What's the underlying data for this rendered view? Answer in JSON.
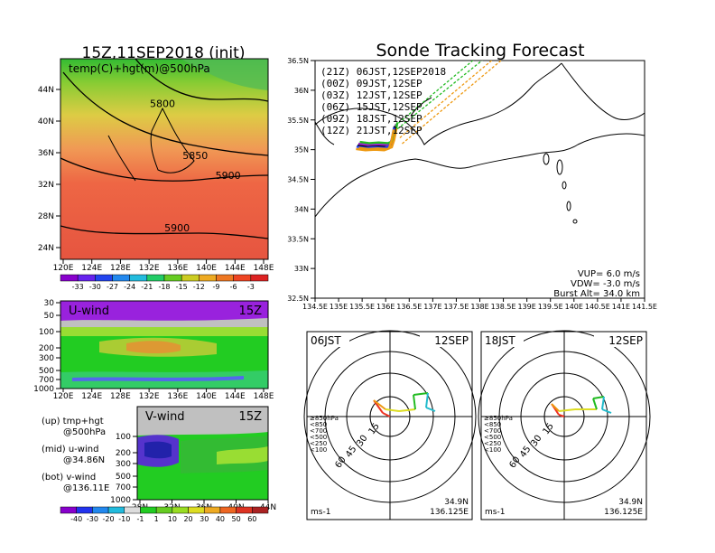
{
  "titles": {
    "left": "15Z,11SEP2018 (init)",
    "right": "Sonde Tracking Forecast"
  },
  "colors": {
    "land": "#ffffff",
    "green": "#22cc22",
    "warm": "#ee5522"
  },
  "chart_data": [
    {
      "type": "heatmap",
      "panel": "temp-500hPa",
      "title": "temp(C)+hgt(m)@500hPa",
      "x_ticks": [
        "120E",
        "124E",
        "128E",
        "132E",
        "136E",
        "140E",
        "144E",
        "148E"
      ],
      "y_ticks": [
        "24N",
        "28N",
        "32N",
        "36N",
        "40N",
        "44N"
      ],
      "contours": [
        {
          "value": "5800",
          "lon": 134,
          "lat": 41
        },
        {
          "value": "5850",
          "lon": 138.5,
          "lat": 34.5
        },
        {
          "value": "5900",
          "lon": 143,
          "lat": 32
        },
        {
          "value": "5900",
          "lon": 136,
          "lat": 25.5
        }
      ],
      "colorbar": [
        "-33",
        "-30",
        "-27",
        "-24",
        "-21",
        "-18",
        "-15",
        "-12",
        "-9",
        "-6",
        "-3"
      ]
    },
    {
      "type": "heatmap",
      "panel": "u-wind",
      "title": "U-wind",
      "time": "15Z",
      "x_ticks": [
        "120E",
        "124E",
        "128E",
        "132E",
        "136E",
        "140E",
        "144E",
        "148E"
      ],
      "y_ticks": [
        "30",
        "50",
        "100",
        "200",
        "300",
        "500",
        "700",
        "1000"
      ]
    },
    {
      "type": "heatmap",
      "panel": "v-wind",
      "title": "V-wind",
      "time": "15Z",
      "x_ticks": [
        "28N",
        "32N",
        "36N",
        "40N",
        "44N"
      ],
      "y_ticks": [
        "100",
        "200",
        "300",
        "500",
        "700",
        "1000"
      ],
      "colorbar": [
        "-40",
        "-30",
        "-20",
        "-10",
        "-1",
        "1",
        "10",
        "20",
        "30",
        "40",
        "50",
        "60"
      ]
    },
    {
      "type": "line",
      "panel": "tracking-map",
      "x_ticks": [
        "134.5E",
        "135E",
        "135.5E",
        "136E",
        "136.5E",
        "137E",
        "137.5E",
        "138E",
        "138.5E",
        "139E",
        "139.5E",
        "140E",
        "140.5E",
        "141E",
        "141.5E"
      ],
      "y_ticks": [
        "32.5N",
        "33N",
        "33.5N",
        "34N",
        "34.5N",
        "35N",
        "35.5N",
        "36N",
        "36.5N"
      ],
      "xlim": [
        134.5,
        141.5
      ],
      "ylim": [
        32.5,
        36.5
      ],
      "series": [
        {
          "name": "(21Z) 06JST,12SEP2018",
          "color": "#000000"
        },
        {
          "name": "(00Z) 09JST,12SEP",
          "color": "#9922cc"
        },
        {
          "name": "(03Z) 12JST,12SEP",
          "color": "#2244ee"
        },
        {
          "name": "(06Z) 15JST,12SEP",
          "color": "#22bb22"
        },
        {
          "name": "(09Z) 18JST,12SEP",
          "color": "#ee9911"
        },
        {
          "name": "(12Z) 21JST,12SEP",
          "color": "#ee9911"
        }
      ],
      "info": [
        "VUP= 6.0 m/s",
        "VDW= -3.0 m/s",
        "Burst Alt= 34.0 km"
      ]
    },
    {
      "type": "line",
      "panel": "hodograph-06JST",
      "time": "06JST",
      "date": "12SEP",
      "rings": [
        "15",
        "30",
        "45",
        "60"
      ],
      "unit": "ms-1",
      "location": [
        "34.9N",
        "136.125E"
      ],
      "legend": [
        "≥850hPa",
        "<850",
        "<700",
        "<500",
        "<250",
        "<100"
      ]
    },
    {
      "type": "line",
      "panel": "hodograph-18JST",
      "time": "18JST",
      "date": "12SEP",
      "rings": [
        "15",
        "30",
        "45",
        "60"
      ],
      "unit": "ms-1",
      "location": [
        "34.9N",
        "136.125E"
      ],
      "legend": [
        "≥850hPa",
        "<850",
        "<700",
        "<500",
        "<250",
        "<100"
      ]
    }
  ],
  "footnotes": {
    "up": "(up) tmp+hgt",
    "up2": "@500hPa",
    "mid": "(mid) u-wind",
    "mid2": "@34.86N",
    "bot": "(bot) v-wind",
    "bot2": "@136.11E"
  }
}
